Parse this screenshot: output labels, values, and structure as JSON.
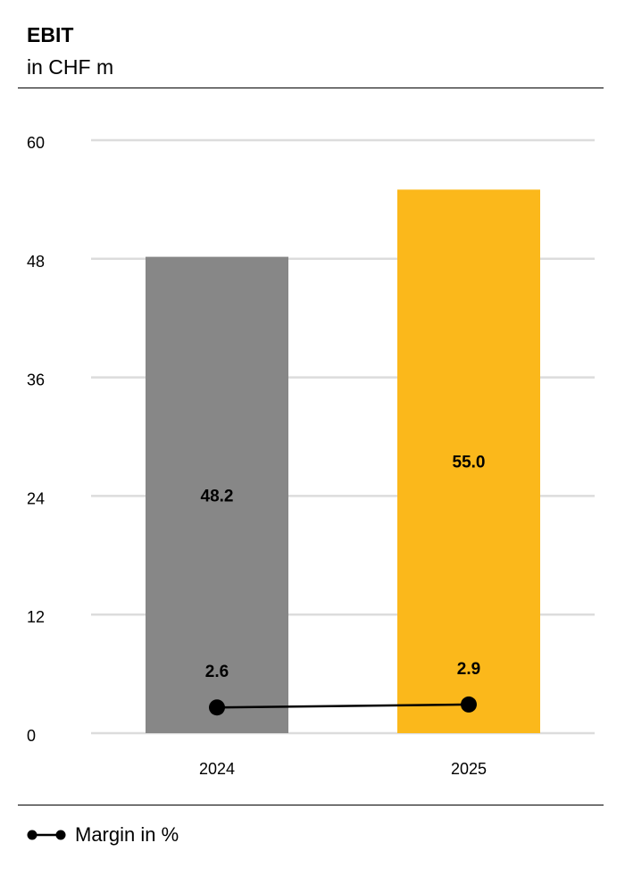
{
  "chart_data": {
    "type": "bar",
    "title": "EBIT",
    "subtitle": "in CHF m",
    "categories": [
      "2024",
      "2025"
    ],
    "series": [
      {
        "type": "bar",
        "values": [
          48.2,
          55.0
        ],
        "value_labels": [
          "48.2",
          "55.0"
        ],
        "colors": [
          "#878787",
          "#fbb81b"
        ]
      },
      {
        "name": "Margin in %",
        "type": "line",
        "values": [
          2.6,
          2.9
        ],
        "value_labels": [
          "2.6",
          "2.9"
        ],
        "color": "#000000"
      }
    ],
    "yticks": [
      "0",
      "12",
      "24",
      "36",
      "48",
      "60"
    ],
    "ylim": [
      0,
      60
    ],
    "grid": true,
    "legend_position": "bottom-left"
  }
}
